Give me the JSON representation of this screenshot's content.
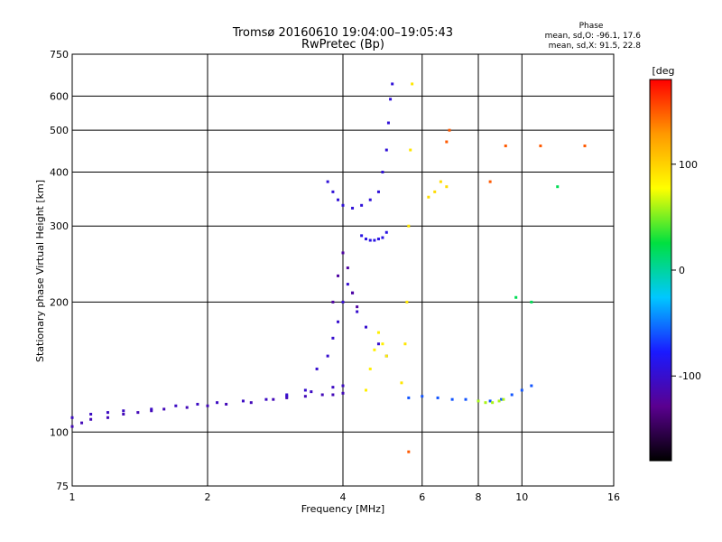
{
  "chart_data": {
    "type": "scatter",
    "title": "Tromsø 20160610 19:04:00–19:05:43",
    "subtitle": "RwPretec (Bp)",
    "xlabel": "Frequency [MHz]",
    "ylabel": "Stationary phase Virtual Height [km]",
    "x_scale": "log",
    "y_scale": "log",
    "xlim": [
      1,
      16
    ],
    "ylim": [
      75,
      750
    ],
    "x_ticks": [
      1,
      2,
      4,
      6,
      8,
      10,
      16
    ],
    "x_tick_labels": [
      "1",
      "2",
      "4",
      "6",
      "8",
      "10",
      "16"
    ],
    "y_ticks": [
      75,
      100,
      200,
      300,
      400,
      500,
      600,
      750
    ],
    "y_tick_labels": [
      "75",
      "100",
      "200",
      "300",
      "400",
      "500",
      "600",
      "750"
    ],
    "grid": true,
    "phase_info": {
      "title": "Phase",
      "o_line": "mean, sd,O: -96.1, 17.6",
      "x_line": "mean, sd,X:  91.5, 22.8"
    },
    "colorbar": {
      "label": "[deg",
      "min": -180,
      "max": 180,
      "ticks": [
        100,
        0,
        -100
      ],
      "tick_labels": [
        "100",
        "0",
        "-100"
      ],
      "colors": [
        "#000000",
        "#5a0090",
        "#1a1aff",
        "#00c8ff",
        "#00e040",
        "#ffff00",
        "#ff9900",
        "#ff0000"
      ]
    },
    "series": [
      {
        "name": "",
        "phase": -110,
        "x": [
          1.0,
          1.05,
          1.1,
          1.2,
          1.3,
          1.4,
          1.5,
          1.6,
          1.8,
          2.0,
          2.2,
          2.5,
          2.8,
          3.0,
          3.3,
          3.6,
          3.8,
          4.0
        ],
        "y": [
          103,
          105,
          107,
          108,
          110,
          111,
          112,
          113,
          114,
          115,
          116,
          117,
          119,
          120,
          121,
          122,
          122,
          123
        ]
      },
      {
        "name": "",
        "phase": -105,
        "x": [
          1.0,
          1.1,
          1.2,
          1.3,
          1.5,
          1.7,
          1.9,
          2.1,
          2.4,
          2.7,
          3.0,
          3.4,
          3.8,
          4.0
        ],
        "y": [
          108,
          110,
          111,
          112,
          113,
          115,
          116,
          117,
          118,
          119,
          121,
          124,
          127,
          128
        ]
      },
      {
        "name": "",
        "phase": -100,
        "x": [
          3.0,
          3.3,
          3.5,
          3.7,
          3.8,
          3.9,
          4.0,
          4.1,
          4.2,
          4.3,
          4.5,
          4.8,
          5.0
        ],
        "y": [
          122,
          125,
          140,
          150,
          165,
          180,
          200,
          220,
          210,
          190,
          175,
          160,
          150
        ]
      },
      {
        "name": "",
        "phase": -95,
        "x": [
          3.7,
          3.8,
          3.9,
          4.0,
          4.2,
          4.4,
          4.6,
          4.8,
          4.9,
          5.0,
          5.05,
          5.1,
          5.15
        ],
        "y": [
          380,
          360,
          345,
          335,
          330,
          335,
          345,
          360,
          400,
          450,
          520,
          590,
          640
        ]
      },
      {
        "name": "",
        "phase": -90,
        "x": [
          4.4,
          4.5,
          4.6,
          4.7,
          4.8,
          4.9,
          5.0
        ],
        "y": [
          285,
          280,
          278,
          278,
          280,
          282,
          290
        ]
      },
      {
        "name": "",
        "phase": -120,
        "x": [
          3.8,
          3.9,
          4.0,
          4.1,
          4.2,
          4.3
        ],
        "y": [
          200,
          230,
          260,
          240,
          210,
          195
        ]
      },
      {
        "name": "",
        "phase": 90,
        "x": [
          5.4,
          5.5,
          5.55,
          5.6,
          5.65,
          5.7
        ],
        "y": [
          130,
          160,
          200,
          300,
          450,
          640
        ]
      },
      {
        "name": "",
        "phase": 85,
        "x": [
          4.5,
          4.6,
          4.7,
          4.8,
          4.9,
          5.0
        ],
        "y": [
          125,
          140,
          155,
          170,
          160,
          150
        ]
      },
      {
        "name": "",
        "phase": 95,
        "x": [
          6.2,
          6.4,
          6.6,
          6.8
        ],
        "y": [
          350,
          360,
          380,
          370
        ]
      },
      {
        "name": "",
        "phase": -60,
        "x": [
          5.6,
          6.0,
          6.5,
          7.0,
          7.5,
          8.0,
          8.5,
          9.0,
          9.5,
          10.0,
          10.5
        ],
        "y": [
          120,
          121,
          120,
          119,
          119,
          118,
          118,
          119,
          122,
          125,
          128
        ]
      },
      {
        "name": "",
        "phase": 60,
        "x": [
          8.0,
          8.3,
          8.6,
          8.9,
          9.1
        ],
        "y": [
          118,
          117,
          117,
          118,
          119
        ]
      },
      {
        "name": "",
        "phase": 150,
        "x": [
          5.6,
          6.9,
          9.2,
          11.0,
          13.8,
          6.8,
          8.5
        ],
        "y": [
          90,
          500,
          460,
          460,
          460,
          470,
          380
        ]
      },
      {
        "name": "",
        "phase": 20,
        "x": [
          9.7,
          12.0,
          10.5
        ],
        "y": [
          205,
          370,
          200
        ]
      }
    ]
  }
}
